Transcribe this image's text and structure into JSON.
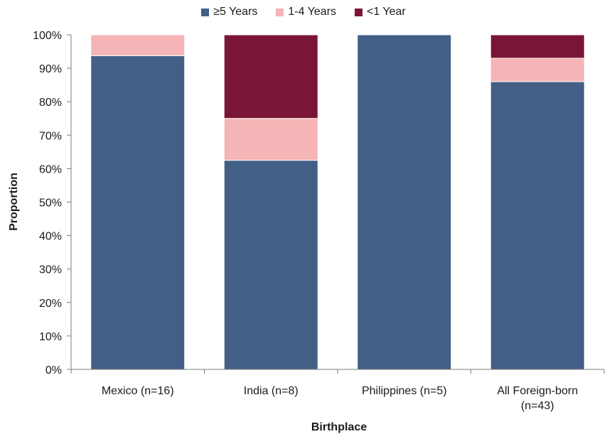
{
  "chart_data": {
    "type": "bar",
    "stacked": true,
    "title": "",
    "xlabel": "Birthplace",
    "ylabel": "Proportion",
    "ylim": [
      0,
      100
    ],
    "yticks": [
      "0%",
      "10%",
      "20%",
      "30%",
      "40%",
      "50%",
      "60%",
      "70%",
      "80%",
      "90%",
      "100%"
    ],
    "categories": [
      "Mexico (n=16)",
      "India (n=8)",
      "Philippines (n=5)",
      "All Foreign-born (n=43)"
    ],
    "category_lines": [
      [
        "Mexico (n=16)"
      ],
      [
        "India (n=8)"
      ],
      [
        "Philippines (n=5)"
      ],
      [
        "All Foreign-born",
        "(n=43)"
      ]
    ],
    "series": [
      {
        "name": "≥5 Years",
        "color": "#435f86",
        "values": [
          93.75,
          62.5,
          100,
          86
        ]
      },
      {
        "name": "1-4 Years",
        "color": "#f5b4b5",
        "values": [
          6.25,
          12.5,
          0,
          7
        ]
      },
      {
        "name": "<1 Year",
        "color": "#7b1535",
        "values": [
          0,
          25,
          0,
          7
        ]
      }
    ],
    "legend_position": "top-center",
    "grid": false
  }
}
